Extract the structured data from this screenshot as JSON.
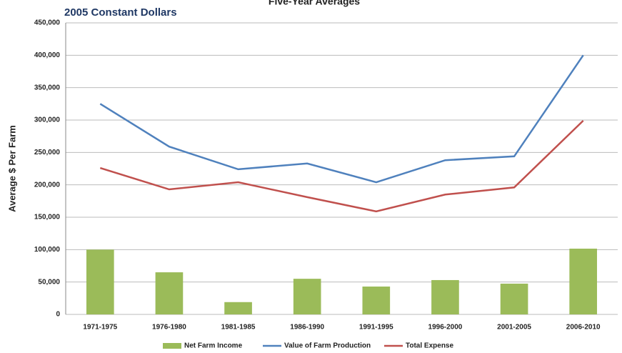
{
  "chart_data": {
    "type": "bar-line",
    "title": "Five-Year Averages",
    "subtitle": "2005 Constant Dollars",
    "y_axis_label": "Average $ Per Farm",
    "categories": [
      "1971-1975",
      "1976-1980",
      "1981-1985",
      "1986-1990",
      "1991-1995",
      "1996-2000",
      "2001-2005",
      "2006-2010"
    ],
    "series": [
      {
        "name": "Net Farm Income",
        "color": "#9bbb59",
        "kind": "bar",
        "values": [
          100000,
          65000,
          19000,
          55000,
          43000,
          53000,
          47500,
          101500
        ]
      },
      {
        "name": "Value of Farm Production",
        "color": "#4f81bd",
        "kind": "line",
        "values": [
          325000,
          259000,
          224000,
          233000,
          204000,
          238000,
          244000,
          400000
        ]
      },
      {
        "name": "Total Expense",
        "color": "#c0504d",
        "kind": "line",
        "values": [
          226000,
          193000,
          204000,
          181000,
          159000,
          185000,
          196000,
          299000
        ]
      }
    ],
    "ylim": [
      0,
      450000
    ],
    "yticks": [
      0,
      {
        "value": 50000,
        "label": "50,000"
      },
      {
        "value": 100000,
        "label": "100,000"
      },
      {
        "value": 150000,
        "label": "150,000"
      },
      {
        "value": 200000,
        "label": "200,000"
      },
      {
        "value": 250000,
        "label": "250,000"
      },
      {
        "value": 300000,
        "label": "300,000"
      },
      {
        "value": 350000,
        "label": "350,000"
      },
      {
        "value": 400000,
        "label": "400,000"
      },
      {
        "value": 450000,
        "label": "450,000"
      }
    ],
    "grid": true,
    "legend": "bottom"
  }
}
